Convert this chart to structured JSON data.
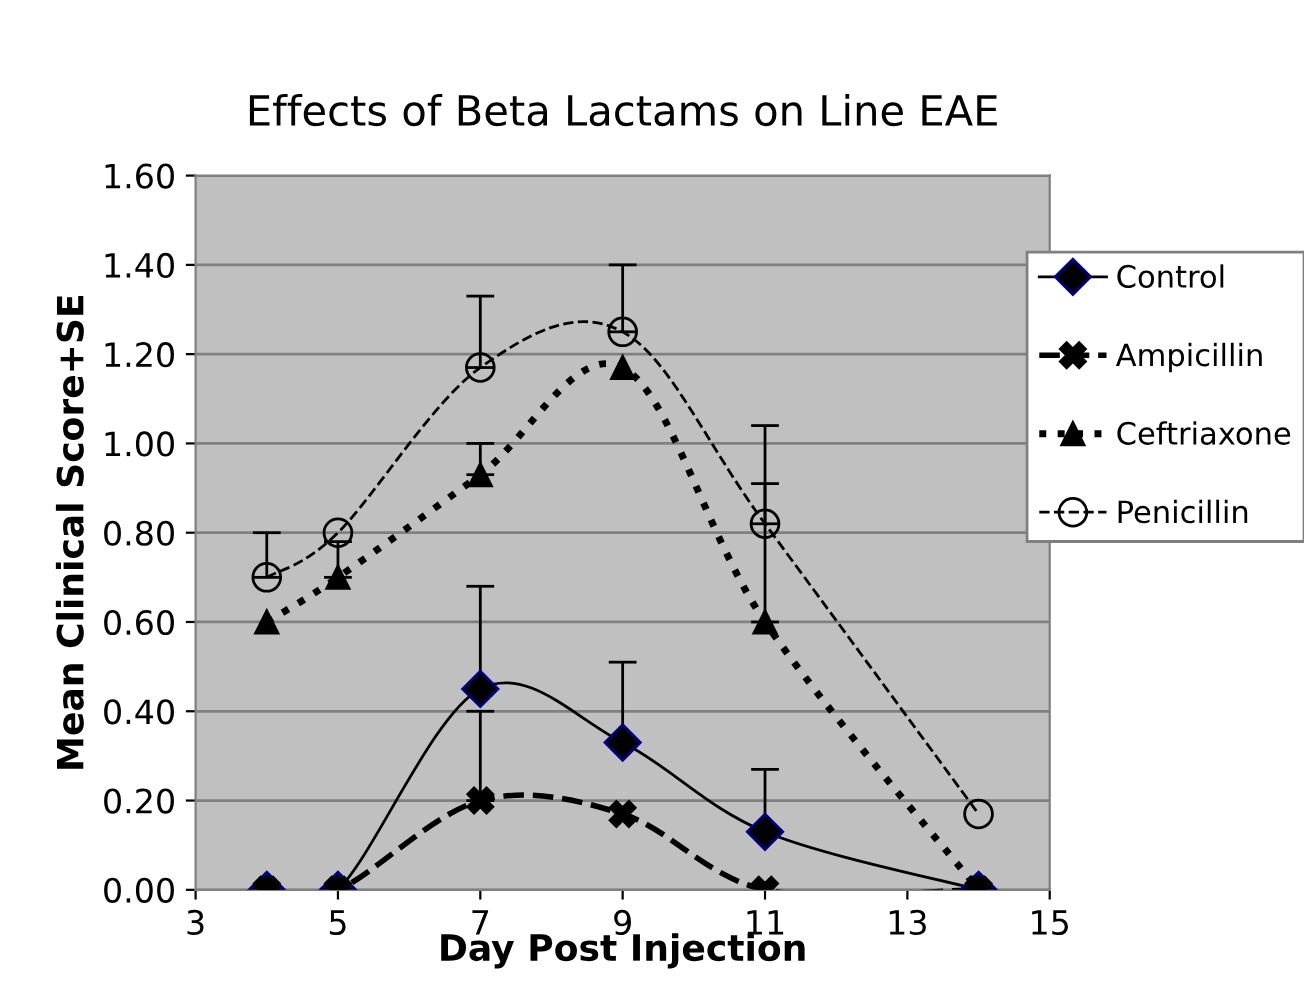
{
  "chart_data": {
    "type": "line",
    "title": "Effects of Beta Lactams on Line EAE",
    "xlabel": "Day Post Injection",
    "ylabel": "Mean Clinical Score+SE",
    "x": [
      4,
      5,
      7,
      9,
      11,
      14
    ],
    "xlim": [
      3,
      15
    ],
    "xticks": [
      3,
      5,
      7,
      9,
      11,
      13,
      15
    ],
    "ylim": [
      0,
      1.6
    ],
    "yticks": [
      {
        "value": 0,
        "label": "0.00"
      },
      {
        "value": 0.2,
        "label": "0.20"
      },
      {
        "value": 0.4,
        "label": "0.40"
      },
      {
        "value": 0.6,
        "label": "0.60"
      },
      {
        "value": 0.8,
        "label": "0.80"
      },
      {
        "value": 1.0,
        "label": "1.00"
      },
      {
        "value": 1.2,
        "label": "1.20"
      },
      {
        "value": 1.4,
        "label": "1.40"
      },
      {
        "value": 1.6,
        "label": "1.60"
      }
    ],
    "grid": "y",
    "legend": "right",
    "series": [
      {
        "name": "Control",
        "color": "#000000",
        "marker": "diamond",
        "line_style": "solid",
        "values": [
          0,
          0,
          0.45,
          0.33,
          0.13,
          0
        ],
        "errors": [
          null,
          null,
          [
            0.45,
            0.68
          ],
          [
            0.33,
            0.51
          ],
          [
            0.13,
            0.27
          ],
          null
        ]
      },
      {
        "name": "Ampicillin",
        "color": "#000000",
        "marker": "cross",
        "line_style": "dashed",
        "values": [
          0,
          0,
          0.2,
          0.17,
          0,
          0
        ],
        "errors": [
          null,
          null,
          [
            0.2,
            0.4
          ],
          null,
          null,
          null
        ]
      },
      {
        "name": "Ceftriaxone",
        "color": "#000000",
        "marker": "triangle",
        "line_style": "dotted",
        "values": [
          0.6,
          0.7,
          0.93,
          1.17,
          0.6,
          0
        ],
        "errors": [
          null,
          [
            0.7,
            0.78
          ],
          [
            0.93,
            1.0
          ],
          null,
          [
            0.6,
            0.91
          ],
          null
        ]
      },
      {
        "name": "Penicillin",
        "color": "#000000",
        "marker": "circle",
        "line_style": "dashed",
        "values": [
          0.7,
          0.8,
          1.17,
          1.25,
          0.82,
          0.17
        ],
        "errors": [
          [
            0.7,
            0.8
          ],
          null,
          [
            1.17,
            1.33
          ],
          [
            1.25,
            1.4
          ],
          [
            0.82,
            1.04
          ],
          null
        ]
      }
    ]
  }
}
